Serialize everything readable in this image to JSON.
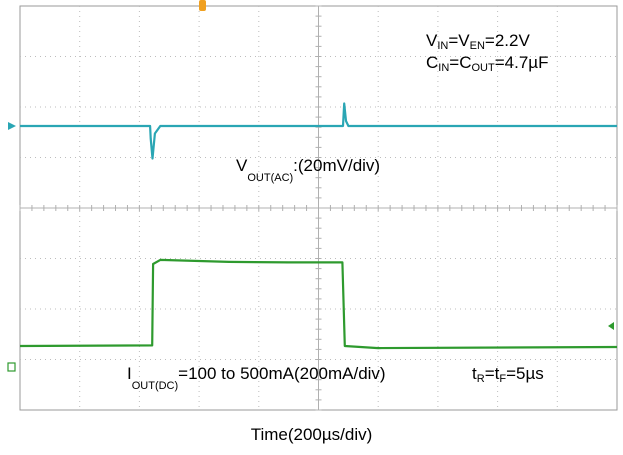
{
  "chart_data": {
    "type": "line",
    "xlabel": "Time(200µs/div)",
    "grid": true,
    "divisions": {
      "x": 10,
      "y": 8
    },
    "x_units": "us",
    "x_range": [
      0,
      2000
    ],
    "series": [
      {
        "label_main": "V",
        "label_sub": "OUT(AC)",
        "label_rest": ":(20mV/div)",
        "color": "#2aa6b4",
        "units": "mV",
        "points": [
          [
            0,
            0
          ],
          [
            436,
            0
          ],
          [
            438,
            -10
          ],
          [
            444,
            -26
          ],
          [
            452,
            -6
          ],
          [
            470,
            0
          ],
          [
            1082,
            0
          ],
          [
            1086,
            18
          ],
          [
            1092,
            4
          ],
          [
            1100,
            0
          ],
          [
            2000,
            0
          ]
        ]
      },
      {
        "label_main": "I",
        "label_sub": "OUT(DC)",
        "label_rest": "=100 to 500mA(200mA/div)",
        "color": "#2e9a2e",
        "units": "mA",
        "points": [
          [
            0,
            100
          ],
          [
            443,
            103
          ],
          [
            446,
            500
          ],
          [
            470,
            520
          ],
          [
            700,
            510
          ],
          [
            900,
            508
          ],
          [
            1080,
            508
          ],
          [
            1088,
            100
          ],
          [
            1200,
            90
          ],
          [
            2000,
            95
          ]
        ]
      }
    ],
    "annotations": {
      "vin": {
        "a": "V",
        "a_sub": "IN",
        "b": "=V",
        "b_sub": "EN",
        "c": "=2.2V"
      },
      "cin": {
        "a": "C",
        "a_sub": "IN",
        "b": "=C",
        "b_sub": "OUT",
        "c": "=4.7µF"
      },
      "tr": {
        "a": "t",
        "a_sub": "R",
        "b": "=t",
        "b_sub": "F",
        "c": "=5µs"
      }
    }
  }
}
